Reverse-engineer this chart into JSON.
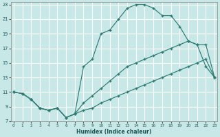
{
  "xlabel": "Humidex (Indice chaleur)",
  "bg_color": "#c8e8e8",
  "grid_color": "#b0d0d0",
  "line_color": "#2d7a72",
  "xlim": [
    0,
    23
  ],
  "ylim": [
    7,
    23
  ],
  "yticks": [
    7,
    9,
    11,
    13,
    15,
    17,
    19,
    21,
    23
  ],
  "xticks": [
    0,
    1,
    2,
    3,
    4,
    5,
    6,
    7,
    8,
    9,
    10,
    11,
    12,
    13,
    14,
    15,
    16,
    17,
    18,
    19,
    20,
    21,
    22,
    23
  ],
  "line_upper_x": [
    0,
    1,
    2,
    3,
    4,
    5,
    6,
    7,
    8,
    9,
    10,
    11,
    12,
    13,
    14,
    15,
    16,
    17,
    18,
    19,
    20,
    21,
    22,
    23
  ],
  "line_upper_y": [
    11.0,
    10.8,
    10.0,
    8.8,
    8.5,
    8.8,
    7.5,
    8.0,
    14.5,
    15.5,
    19.0,
    19.5,
    21.0,
    22.5,
    23.0,
    23.0,
    22.5,
    21.5,
    21.5,
    20.0,
    18.0,
    17.5,
    14.5,
    13.0
  ],
  "line_middle_x": [
    0,
    1,
    2,
    3,
    4,
    5,
    6,
    7,
    8,
    9,
    10,
    11,
    12,
    13,
    14,
    15,
    16,
    17,
    18,
    19,
    20,
    21,
    22,
    23
  ],
  "line_middle_y": [
    11.0,
    10.8,
    10.0,
    8.8,
    8.5,
    8.8,
    7.5,
    8.0,
    9.5,
    10.5,
    11.5,
    12.5,
    13.5,
    14.5,
    15.0,
    15.5,
    16.0,
    16.5,
    17.0,
    17.5,
    18.0,
    17.5,
    17.5,
    13.0
  ],
  "line_lower_x": [
    0,
    1,
    2,
    3,
    4,
    5,
    6,
    7,
    8,
    9,
    10,
    11,
    12,
    13,
    14,
    15,
    16,
    17,
    18,
    19,
    20,
    21,
    22,
    23
  ],
  "line_lower_y": [
    11.0,
    10.8,
    10.0,
    8.8,
    8.5,
    8.8,
    7.5,
    8.0,
    8.5,
    8.8,
    9.5,
    10.0,
    10.5,
    11.0,
    11.5,
    12.0,
    12.5,
    13.0,
    13.5,
    14.0,
    14.5,
    15.0,
    15.5,
    13.0
  ]
}
